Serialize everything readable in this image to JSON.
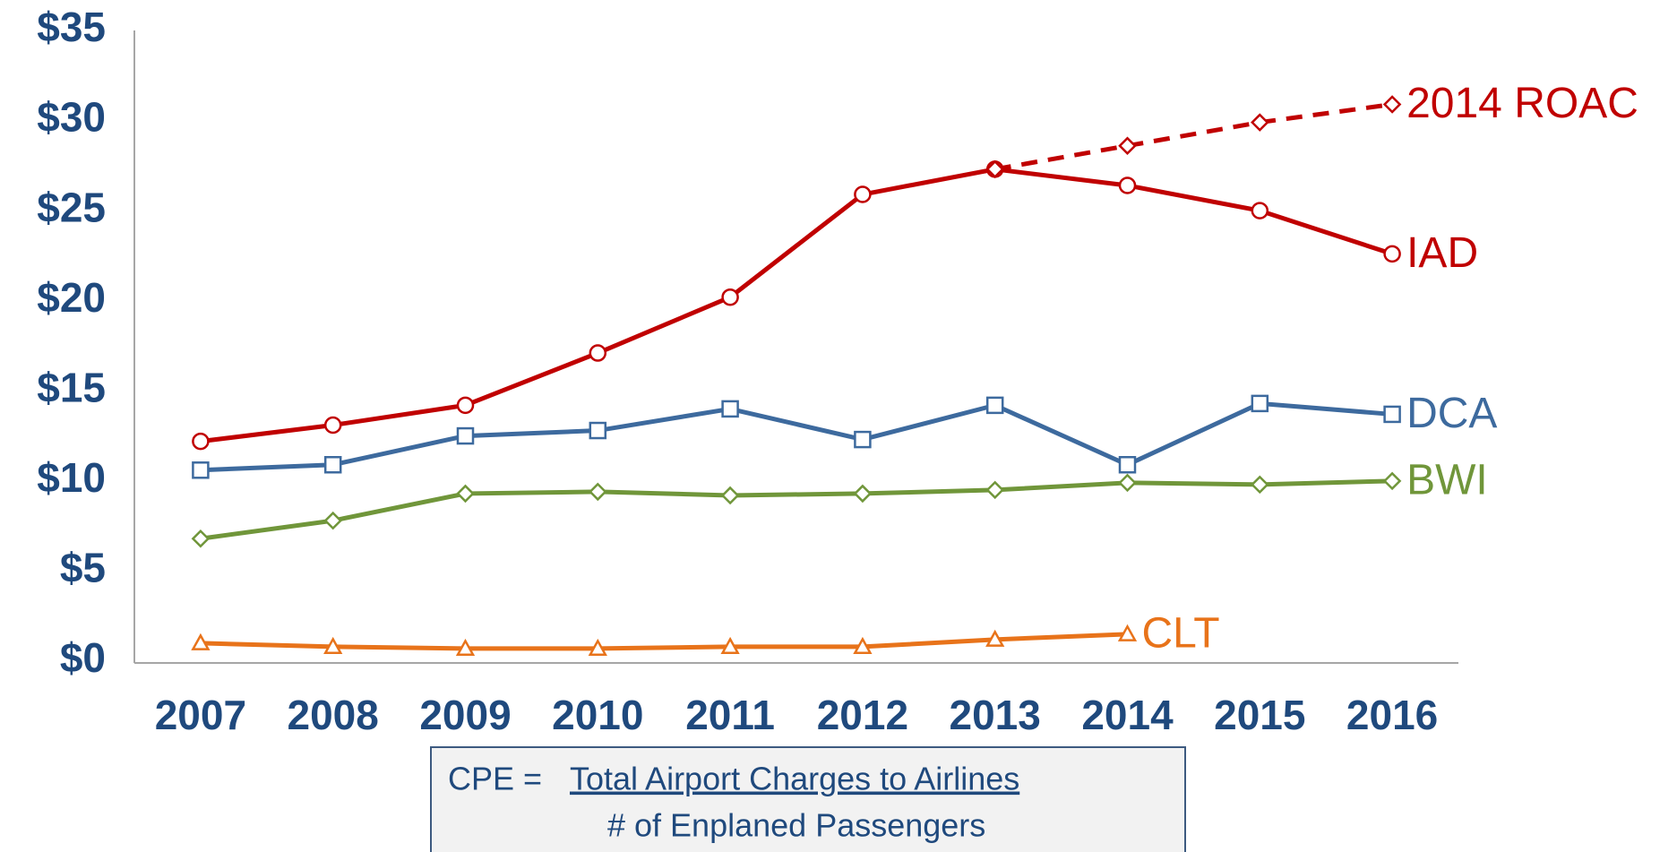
{
  "chart_data": {
    "type": "line",
    "categories": [
      "2007",
      "2008",
      "2009",
      "2010",
      "2011",
      "2012",
      "2013",
      "2014",
      "2015",
      "2016"
    ],
    "series": [
      {
        "name": "IAD",
        "color": "#c00000",
        "marker": "circle",
        "dash": false,
        "values": [
          12.2,
          13.1,
          14.2,
          17.1,
          20.2,
          25.9,
          27.3,
          26.4,
          25.0,
          22.6
        ]
      },
      {
        "name": "2014 ROAC",
        "color": "#c00000",
        "marker": "diamond",
        "dash": true,
        "values": [
          null,
          null,
          null,
          null,
          null,
          null,
          27.3,
          28.6,
          29.9,
          30.9
        ]
      },
      {
        "name": "DCA",
        "color": "#3d6a9e",
        "marker": "square",
        "dash": false,
        "values": [
          10.6,
          10.9,
          12.5,
          12.8,
          14.0,
          12.3,
          14.2,
          10.9,
          14.3,
          13.7
        ]
      },
      {
        "name": "BWI",
        "color": "#70963a",
        "marker": "diamond",
        "dash": false,
        "values": [
          6.8,
          7.8,
          9.3,
          9.4,
          9.2,
          9.3,
          9.5,
          9.9,
          9.8,
          10.0
        ]
      },
      {
        "name": "CLT",
        "color": "#e8731a",
        "marker": "triangle",
        "dash": false,
        "values": [
          1.0,
          0.8,
          0.7,
          0.7,
          0.8,
          0.8,
          1.2,
          1.5,
          null,
          null
        ]
      }
    ],
    "ylim": [
      0,
      35
    ],
    "yticks": [
      {
        "value": 0,
        "label": "$0"
      },
      {
        "value": 5,
        "label": "$5"
      },
      {
        "value": 10,
        "label": "$10"
      },
      {
        "value": 15,
        "label": "$15"
      },
      {
        "value": 20,
        "label": "$20"
      },
      {
        "value": 25,
        "label": "$25"
      },
      {
        "value": 30,
        "label": "$30"
      },
      {
        "value": 35,
        "label": "$35"
      }
    ],
    "grid": false,
    "legend": "line-end"
  },
  "formula": {
    "lhs": "CPE =",
    "numerator": "Total Airport Charges to Airlines",
    "denominator": "# of Enplaned Passengers"
  }
}
